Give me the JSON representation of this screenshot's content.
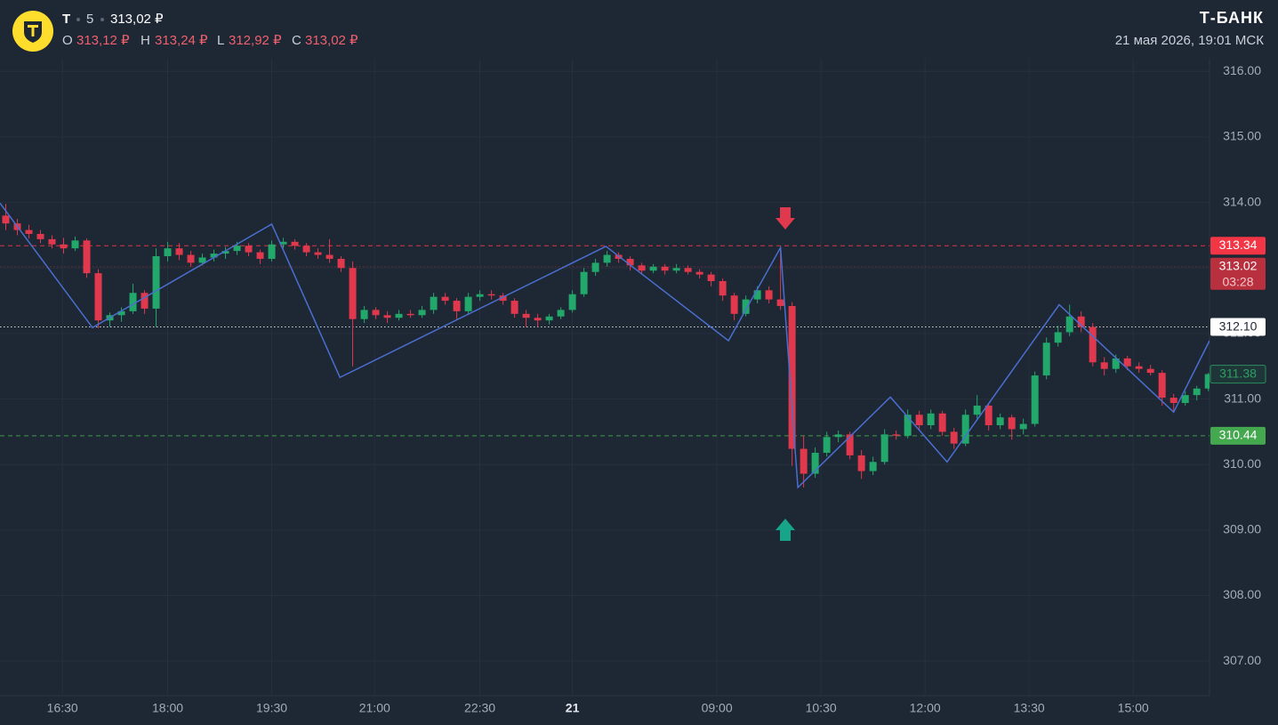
{
  "header": {
    "ticker": "T",
    "interval": "5",
    "price": "313,02 ₽",
    "ohlc": [
      {
        "key": "O",
        "value": "313,12 ₽"
      },
      {
        "key": "H",
        "value": "313,24 ₽"
      },
      {
        "key": "L",
        "value": "312,92 ₽"
      },
      {
        "key": "C",
        "value": "313,02 ₽"
      }
    ],
    "brand": "Т-БАНК",
    "datetime": "21 мая 2026, 19:01 МСК"
  },
  "chart_data": {
    "type": "candlestick",
    "up_color": "#22a86a",
    "down_color": "#e0384c",
    "grid": true,
    "xlim": [
      0,
      104.6
    ],
    "ylim": [
      306.5,
      316.14
    ],
    "xticks": [
      {
        "value": 5.4,
        "label": "16:30"
      },
      {
        "value": 14.5,
        "label": "18:00"
      },
      {
        "value": 23.5,
        "label": "19:30"
      },
      {
        "value": 32.4,
        "label": "21:00"
      },
      {
        "value": 41.5,
        "label": "22:30"
      },
      {
        "value": 49.5,
        "label": "21"
      },
      {
        "value": 62,
        "label": "09:00"
      },
      {
        "value": 71,
        "label": "10:30"
      },
      {
        "value": 80,
        "label": "12:00"
      },
      {
        "value": 89,
        "label": "13:30"
      },
      {
        "value": 98,
        "label": "15:00"
      }
    ],
    "yticks": [
      {
        "value": 307,
        "label": "307.00"
      },
      {
        "value": 308,
        "label": "308.00"
      },
      {
        "value": 309,
        "label": "309.00"
      },
      {
        "value": 310,
        "label": "310.00"
      },
      {
        "value": 311,
        "label": "311.00"
      },
      {
        "value": 312,
        "label": "312.00"
      },
      {
        "value": 313,
        "label": "313.00"
      },
      {
        "value": 314,
        "label": "314.00"
      },
      {
        "value": 315,
        "label": "315.00"
      },
      {
        "value": 316,
        "label": "316.00"
      }
    ],
    "candles": [
      [
        313.8,
        313.98,
        313.58,
        313.68
      ],
      [
        313.68,
        313.75,
        313.5,
        313.58
      ],
      [
        313.58,
        313.66,
        313.45,
        313.52
      ],
      [
        313.52,
        313.58,
        313.38,
        313.44
      ],
      [
        313.44,
        313.5,
        313.3,
        313.36
      ],
      [
        313.36,
        313.46,
        313.22,
        313.3
      ],
      [
        313.3,
        313.48,
        313.26,
        313.42
      ],
      [
        313.42,
        313.45,
        312.85,
        312.92
      ],
      [
        312.92,
        312.98,
        312.08,
        312.2
      ],
      [
        312.2,
        312.32,
        312.1,
        312.28
      ],
      [
        312.28,
        312.4,
        312.18,
        312.34
      ],
      [
        312.34,
        312.76,
        312.3,
        312.62
      ],
      [
        312.62,
        312.66,
        312.3,
        312.38
      ],
      [
        312.38,
        313.3,
        312.1,
        313.18
      ],
      [
        313.18,
        313.4,
        313.1,
        313.3
      ],
      [
        313.3,
        313.38,
        313.12,
        313.2
      ],
      [
        313.2,
        313.26,
        313.02,
        313.08
      ],
      [
        313.08,
        313.22,
        313.04,
        313.16
      ],
      [
        313.16,
        313.28,
        313.1,
        313.22
      ],
      [
        313.22,
        313.32,
        313.14,
        313.26
      ],
      [
        313.26,
        313.4,
        313.2,
        313.34
      ],
      [
        313.34,
        313.38,
        313.18,
        313.24
      ],
      [
        313.24,
        313.28,
        313.06,
        313.14
      ],
      [
        313.14,
        313.42,
        313.1,
        313.36
      ],
      [
        313.36,
        313.46,
        313.3,
        313.4
      ],
      [
        313.4,
        313.44,
        313.28,
        313.34
      ],
      [
        313.34,
        313.38,
        313.18,
        313.24
      ],
      [
        313.24,
        313.3,
        313.14,
        313.2
      ],
      [
        313.2,
        313.44,
        313.08,
        313.14
      ],
      [
        313.14,
        313.18,
        312.94,
        313.0
      ],
      [
        313.0,
        313.1,
        311.5,
        312.22
      ],
      [
        312.22,
        312.42,
        312.16,
        312.36
      ],
      [
        312.36,
        312.4,
        312.22,
        312.28
      ],
      [
        312.28,
        312.34,
        312.16,
        312.24
      ],
      [
        312.24,
        312.36,
        312.2,
        312.3
      ],
      [
        312.3,
        312.36,
        312.24,
        312.28
      ],
      [
        312.28,
        312.42,
        312.24,
        312.36
      ],
      [
        312.36,
        312.62,
        312.3,
        312.56
      ],
      [
        312.56,
        312.62,
        312.44,
        312.5
      ],
      [
        312.5,
        312.54,
        312.22,
        312.34
      ],
      [
        312.34,
        312.62,
        312.3,
        312.56
      ],
      [
        312.56,
        312.66,
        312.5,
        312.6
      ],
      [
        312.6,
        312.66,
        312.52,
        312.58
      ],
      [
        312.58,
        312.62,
        312.44,
        312.5
      ],
      [
        312.5,
        312.54,
        312.24,
        312.3
      ],
      [
        312.3,
        312.36,
        312.1,
        312.24
      ],
      [
        312.24,
        312.3,
        312.1,
        312.2
      ],
      [
        312.2,
        312.3,
        312.14,
        312.26
      ],
      [
        312.26,
        312.4,
        312.22,
        312.36
      ],
      [
        312.36,
        312.66,
        312.32,
        312.6
      ],
      [
        312.6,
        313.0,
        312.56,
        312.94
      ],
      [
        312.94,
        313.14,
        312.88,
        313.08
      ],
      [
        313.08,
        313.26,
        313.02,
        313.2
      ],
      [
        313.2,
        313.24,
        313.08,
        313.14
      ],
      [
        313.14,
        313.18,
        312.96,
        313.04
      ],
      [
        313.04,
        313.08,
        312.9,
        312.96
      ],
      [
        312.96,
        313.06,
        312.92,
        313.02
      ],
      [
        313.02,
        313.06,
        312.9,
        312.96
      ],
      [
        312.96,
        313.06,
        312.92,
        313.0
      ],
      [
        313.0,
        313.04,
        312.9,
        312.94
      ],
      [
        312.94,
        312.98,
        312.84,
        312.9
      ],
      [
        312.9,
        312.94,
        312.72,
        312.8
      ],
      [
        312.8,
        312.84,
        312.5,
        312.58
      ],
      [
        312.58,
        312.62,
        312.2,
        312.3
      ],
      [
        312.3,
        312.58,
        312.26,
        312.52
      ],
      [
        312.52,
        312.72,
        312.46,
        312.66
      ],
      [
        312.66,
        312.72,
        312.46,
        312.52
      ],
      [
        312.52,
        313.3,
        312.36,
        312.42
      ],
      [
        312.42,
        312.48,
        309.98,
        310.24
      ],
      [
        310.24,
        310.44,
        309.65,
        309.86
      ],
      [
        309.86,
        310.26,
        309.8,
        310.18
      ],
      [
        310.18,
        310.5,
        310.12,
        310.42
      ],
      [
        310.42,
        310.52,
        310.34,
        310.46
      ],
      [
        310.46,
        310.5,
        310.08,
        310.14
      ],
      [
        310.14,
        310.22,
        309.78,
        309.9
      ],
      [
        309.9,
        310.12,
        309.84,
        310.04
      ],
      [
        310.04,
        310.54,
        310.0,
        310.46
      ],
      [
        310.46,
        310.52,
        310.38,
        310.44
      ],
      [
        310.44,
        310.84,
        310.4,
        310.76
      ],
      [
        310.76,
        310.82,
        310.52,
        310.6
      ],
      [
        310.6,
        310.84,
        310.54,
        310.78
      ],
      [
        310.78,
        310.82,
        310.44,
        310.5
      ],
      [
        310.5,
        310.56,
        310.24,
        310.32
      ],
      [
        310.32,
        310.84,
        310.28,
        310.76
      ],
      [
        310.76,
        311.06,
        310.7,
        310.9
      ],
      [
        310.9,
        310.94,
        310.52,
        310.6
      ],
      [
        310.6,
        310.78,
        310.54,
        310.72
      ],
      [
        310.72,
        310.76,
        310.38,
        310.54
      ],
      [
        310.54,
        310.7,
        310.46,
        310.62
      ],
      [
        310.62,
        311.42,
        310.58,
        311.36
      ],
      [
        311.36,
        311.94,
        311.3,
        311.86
      ],
      [
        311.86,
        312.12,
        311.8,
        312.02
      ],
      [
        312.02,
        312.44,
        311.96,
        312.26
      ],
      [
        312.26,
        312.34,
        312.02,
        312.1
      ],
      [
        312.1,
        312.16,
        311.5,
        311.56
      ],
      [
        311.56,
        311.64,
        311.36,
        311.46
      ],
      [
        311.46,
        311.68,
        311.4,
        311.62
      ],
      [
        311.62,
        311.66,
        311.44,
        311.5
      ],
      [
        311.5,
        311.56,
        311.4,
        311.46
      ],
      [
        311.46,
        311.52,
        311.36,
        311.4
      ],
      [
        311.4,
        311.44,
        310.9,
        311.02
      ],
      [
        311.02,
        311.08,
        310.8,
        310.94
      ],
      [
        310.94,
        311.12,
        310.9,
        311.06
      ],
      [
        311.06,
        311.2,
        310.98,
        311.16
      ],
      [
        311.16,
        311.4,
        311.12,
        311.38
      ]
    ],
    "zigzag": {
      "color": "#4a6fd0",
      "x": [
        0,
        8.0,
        23.5,
        29.4,
        52.4,
        63.0,
        67.5,
        69.0,
        77.0,
        81.9,
        91.6,
        101.5,
        104.6
      ],
      "values": [
        313.99,
        312.09,
        313.67,
        311.33,
        313.33,
        311.89,
        313.31,
        309.65,
        311.03,
        310.04,
        312.44,
        310.8,
        311.89
      ]
    },
    "price_lines": [
      {
        "value": 313.34,
        "label": "313.34",
        "color": "#f23645",
        "style": "dashed",
        "box": "fill"
      },
      {
        "value": 313.02,
        "label": "313.02",
        "countdown": "03:28",
        "color": "#b8303e",
        "style": "dotted",
        "box": "fill"
      },
      {
        "value": 312.1,
        "label": "312.10",
        "color": "#e8e8e8",
        "style": "dotted",
        "box": "light"
      },
      {
        "value": 311.38,
        "label": "311.38",
        "color": "#2a8f5a",
        "style": "none",
        "box": "outline"
      },
      {
        "value": 310.44,
        "label": "310.44",
        "color": "#43a84e",
        "style": "dashed",
        "box": "fill"
      }
    ]
  }
}
